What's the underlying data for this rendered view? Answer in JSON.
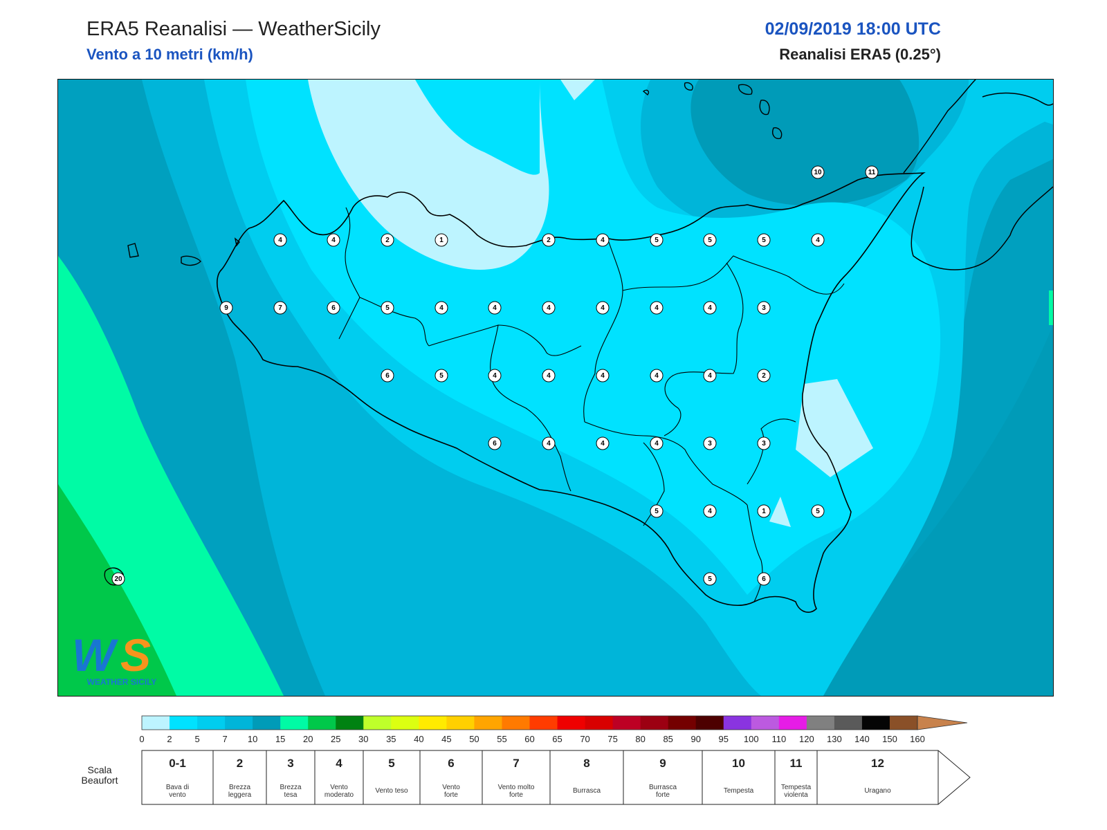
{
  "header": {
    "title": "ERA5 Reanalisi — WeatherSicily",
    "subtitle": "Vento a 10 metri (km/h)",
    "datetime": "02/09/2019 18:00 UTC",
    "source": "Reanalisi ERA5 (0.25°)"
  },
  "map": {
    "field": "Vento a 10 metri",
    "unit": "km/h",
    "station_values": [
      [
        "10",
        1182,
        249
      ],
      [
        "11",
        1260,
        249
      ],
      [
        "4",
        405,
        347
      ],
      [
        "4",
        482,
        347
      ],
      [
        "2",
        560,
        347
      ],
      [
        "1",
        638,
        347
      ],
      [
        "2",
        793,
        347
      ],
      [
        "4",
        871,
        347
      ],
      [
        "5",
        949,
        347
      ],
      [
        "5",
        1026,
        347
      ],
      [
        "5",
        1104,
        347
      ],
      [
        "4",
        1182,
        347
      ],
      [
        "9",
        327,
        445
      ],
      [
        "7",
        405,
        445
      ],
      [
        "6",
        482,
        445
      ],
      [
        "5",
        560,
        445
      ],
      [
        "4",
        638,
        445
      ],
      [
        "4",
        715,
        445
      ],
      [
        "4",
        793,
        445
      ],
      [
        "4",
        871,
        445
      ],
      [
        "4",
        949,
        445
      ],
      [
        "4",
        1026,
        445
      ],
      [
        "3",
        1104,
        445
      ],
      [
        "6",
        560,
        543
      ],
      [
        "5",
        638,
        543
      ],
      [
        "4",
        715,
        543
      ],
      [
        "4",
        793,
        543
      ],
      [
        "4",
        871,
        543
      ],
      [
        "4",
        949,
        543
      ],
      [
        "4",
        1026,
        543
      ],
      [
        "2",
        1104,
        543
      ],
      [
        "6",
        715,
        641
      ],
      [
        "4",
        793,
        641
      ],
      [
        "4",
        871,
        641
      ],
      [
        "4",
        949,
        641
      ],
      [
        "3",
        1026,
        641
      ],
      [
        "3",
        1104,
        641
      ],
      [
        "5",
        949,
        739
      ],
      [
        "4",
        1026,
        739
      ],
      [
        "1",
        1104,
        739
      ],
      [
        "5",
        1182,
        739
      ],
      [
        "5",
        1026,
        837
      ],
      [
        "6",
        1104,
        837
      ],
      [
        "20",
        171,
        837
      ]
    ]
  },
  "logo": {
    "text": "WEATHER SICILY",
    "mark": "WS"
  },
  "colorbar": {
    "ticks": [
      "0",
      "2",
      "5",
      "7",
      "10",
      "15",
      "20",
      "25",
      "30",
      "35",
      "40",
      "45",
      "50",
      "55",
      "60",
      "65",
      "70",
      "75",
      "80",
      "85",
      "90",
      "95",
      "100",
      "110",
      "120",
      "130",
      "140",
      "150",
      "160"
    ],
    "colors": [
      "#bdf4ff",
      "#00e2ff",
      "#00cdef",
      "#00b5d9",
      "#009bb8",
      "#00fba5",
      "#00c84a",
      "#008212",
      "#bfff2b",
      "#dcff11",
      "#ffeb00",
      "#ffd000",
      "#ffa500",
      "#ff7a00",
      "#ff3c00",
      "#ef0000",
      "#d80000",
      "#bd0024",
      "#9c0012",
      "#740000",
      "#4d0000",
      "#8a34e0",
      "#bc5ae0",
      "#e61ce6",
      "#808080",
      "#5a5a5a",
      "#050505",
      "#8a5028",
      "#c8824c"
    ]
  },
  "beaufort": {
    "title": "Scala Beaufort",
    "levels": [
      {
        "num": "0-1",
        "desc": "Bava di vento"
      },
      {
        "num": "2",
        "desc": "Brezza leggera"
      },
      {
        "num": "3",
        "desc": "Brezza tesa"
      },
      {
        "num": "4",
        "desc": "Vento moderato"
      },
      {
        "num": "5",
        "desc": "Vento teso"
      },
      {
        "num": "6",
        "desc": "Vento forte"
      },
      {
        "num": "7",
        "desc": "Vento molto forte"
      },
      {
        "num": "8",
        "desc": "Burrasca"
      },
      {
        "num": "9",
        "desc": "Burrasca forte"
      },
      {
        "num": "10",
        "desc": "Tempesta"
      },
      {
        "num": "11",
        "desc": "Tempesta violenta"
      },
      {
        "num": "12",
        "desc": "Uragano"
      }
    ]
  }
}
